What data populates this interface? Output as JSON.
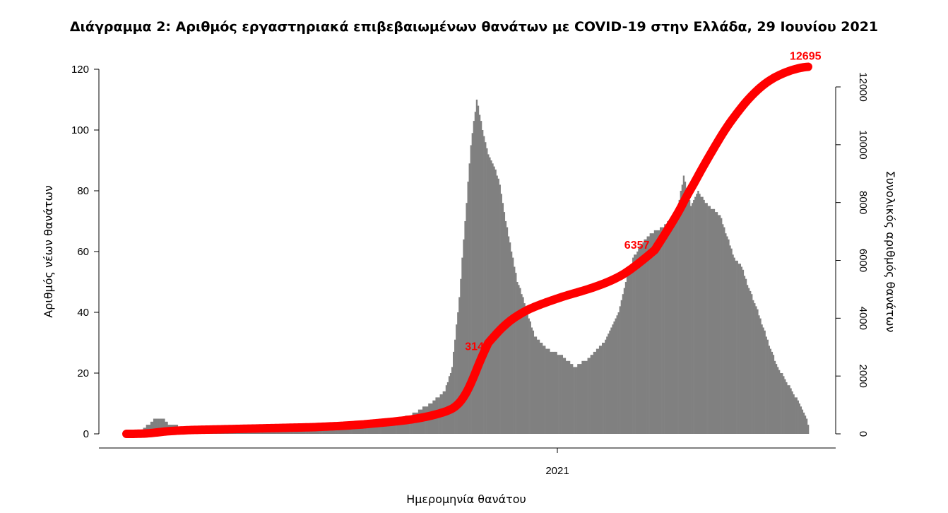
{
  "chart_data": {
    "type": "bar",
    "title": "Διάγραμμα 2: Αριθμός εργαστηριακά επιβεβαιωμένων θανάτων με COVID-19 στην Ελλάδα, 29 Ιουνίου 2021",
    "xlabel": "Ημερομηνία θανάτου",
    "ylabel": "Αριθμός νέων θανάτων",
    "y2label": "Συνολικός αριθμός θανάτων",
    "x_tick_labels": [
      "2021"
    ],
    "ylim": [
      0,
      120
    ],
    "y_ticks": [
      0,
      20,
      40,
      60,
      80,
      100,
      120
    ],
    "y2lim": [
      0,
      12000
    ],
    "y2_ticks": [
      0,
      2000,
      4000,
      6000,
      8000,
      10000,
      12000
    ],
    "grid": false,
    "colors": {
      "bars": "#808080",
      "cumulative_line": "#ff0000"
    },
    "daily_deaths_knots": [
      [
        0,
        0
      ],
      [
        10,
        1
      ],
      [
        15,
        3
      ],
      [
        20,
        5
      ],
      [
        25,
        5
      ],
      [
        30,
        3
      ],
      [
        40,
        2
      ],
      [
        50,
        1
      ],
      [
        70,
        1
      ],
      [
        100,
        1
      ],
      [
        120,
        1
      ],
      [
        140,
        2
      ],
      [
        160,
        3
      ],
      [
        170,
        4
      ],
      [
        180,
        4
      ],
      [
        190,
        5
      ],
      [
        200,
        7
      ],
      [
        210,
        10
      ],
      [
        220,
        14
      ],
      [
        225,
        22
      ],
      [
        230,
        45
      ],
      [
        234,
        70
      ],
      [
        238,
        95
      ],
      [
        242,
        110
      ],
      [
        246,
        100
      ],
      [
        250,
        92
      ],
      [
        254,
        88
      ],
      [
        258,
        82
      ],
      [
        262,
        70
      ],
      [
        266,
        60
      ],
      [
        270,
        50
      ],
      [
        274,
        45
      ],
      [
        278,
        38
      ],
      [
        282,
        32
      ],
      [
        290,
        28
      ],
      [
        300,
        26
      ],
      [
        310,
        22
      ],
      [
        320,
        25
      ],
      [
        330,
        30
      ],
      [
        340,
        40
      ],
      [
        345,
        50
      ],
      [
        350,
        58
      ],
      [
        360,
        65
      ],
      [
        370,
        68
      ],
      [
        380,
        72
      ],
      [
        385,
        85
      ],
      [
        390,
        75
      ],
      [
        395,
        80
      ],
      [
        400,
        76
      ],
      [
        410,
        72
      ],
      [
        415,
        65
      ],
      [
        420,
        58
      ],
      [
        425,
        55
      ],
      [
        430,
        48
      ],
      [
        435,
        42
      ],
      [
        440,
        35
      ],
      [
        445,
        28
      ],
      [
        450,
        22
      ],
      [
        455,
        18
      ],
      [
        460,
        14
      ],
      [
        465,
        10
      ],
      [
        470,
        5
      ],
      [
        471,
        3
      ]
    ],
    "cumulative_labels": [
      {
        "day": 250,
        "value": 3144,
        "label": "3144"
      },
      {
        "day": 365,
        "value": 6357,
        "label": "6357"
      },
      {
        "day": 471,
        "value": 12695,
        "label": "12695"
      }
    ]
  }
}
